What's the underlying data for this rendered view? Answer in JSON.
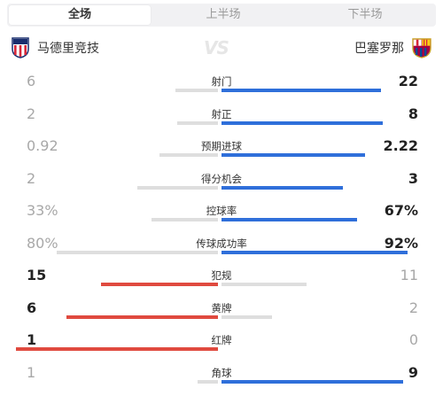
{
  "tabs": [
    {
      "label": "全场",
      "active": true
    },
    {
      "label": "上半场",
      "active": false
    },
    {
      "label": "下半场",
      "active": false
    }
  ],
  "teams": {
    "home": {
      "name": "马德里竞技",
      "crest": "atletico-crest-icon"
    },
    "away": {
      "name": "巴塞罗那",
      "crest": "barcelona-crest-icon"
    },
    "vs": "VS"
  },
  "colors": {
    "away": "#2f6fda",
    "home": "#e04a3f",
    "neutral": "#dedede"
  },
  "stats": [
    {
      "label": "射门",
      "home": "6",
      "away": "22",
      "home_share": 0.21,
      "away_share": 0.79,
      "leader": "away"
    },
    {
      "label": "射正",
      "home": "2",
      "away": "8",
      "home_share": 0.2,
      "away_share": 0.8,
      "leader": "away"
    },
    {
      "label": "预期进球",
      "home": "0.92",
      "away": "2.22",
      "home_share": 0.29,
      "away_share": 0.71,
      "leader": "away"
    },
    {
      "label": "得分机会",
      "home": "2",
      "away": "3",
      "home_share": 0.4,
      "away_share": 0.6,
      "leader": "away"
    },
    {
      "label": "控球率",
      "home": "33%",
      "away": "67%",
      "home_share": 0.33,
      "away_share": 0.67,
      "leader": "away"
    },
    {
      "label": "传球成功率",
      "home": "80%",
      "away": "92%",
      "home_share": 0.8,
      "away_share": 0.92,
      "leader": "away"
    },
    {
      "label": "犯规",
      "home": "15",
      "away": "11",
      "home_share": 0.58,
      "away_share": 0.42,
      "leader": "home"
    },
    {
      "label": "黄牌",
      "home": "6",
      "away": "2",
      "home_share": 0.75,
      "away_share": 0.25,
      "leader": "home"
    },
    {
      "label": "红牌",
      "home": "1",
      "away": "0",
      "home_share": 1.0,
      "away_share": 0.0,
      "leader": "home"
    },
    {
      "label": "角球",
      "home": "1",
      "away": "9",
      "home_share": 0.1,
      "away_share": 0.9,
      "leader": "away"
    }
  ]
}
